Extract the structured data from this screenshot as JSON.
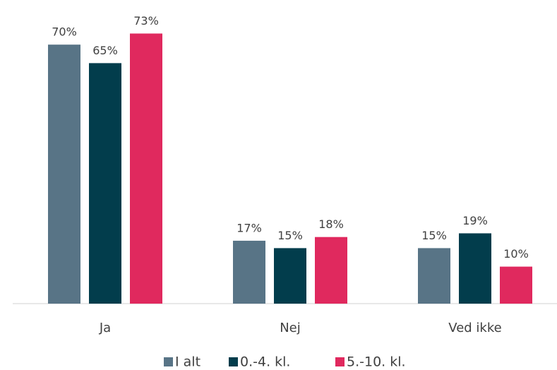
{
  "chart_data": {
    "type": "bar",
    "categories": [
      "Ja",
      "Nej",
      "Ved ikke"
    ],
    "series": [
      {
        "name": "I alt",
        "color": "#587486",
        "values": [
          70,
          17,
          15
        ],
        "value_labels": [
          "70%",
          "17%",
          "15%"
        ]
      },
      {
        "name": "0.-4. kl.",
        "color": "#023d4c",
        "values": [
          65,
          15,
          19
        ],
        "value_labels": [
          "65%",
          "15%",
          "19%"
        ]
      },
      {
        "name": "5.-10. kl.",
        "color": "#e0295e",
        "values": [
          73,
          18,
          10
        ],
        "value_labels": [
          "73%",
          "18%",
          "10%"
        ]
      }
    ],
    "legend": "bottom"
  }
}
